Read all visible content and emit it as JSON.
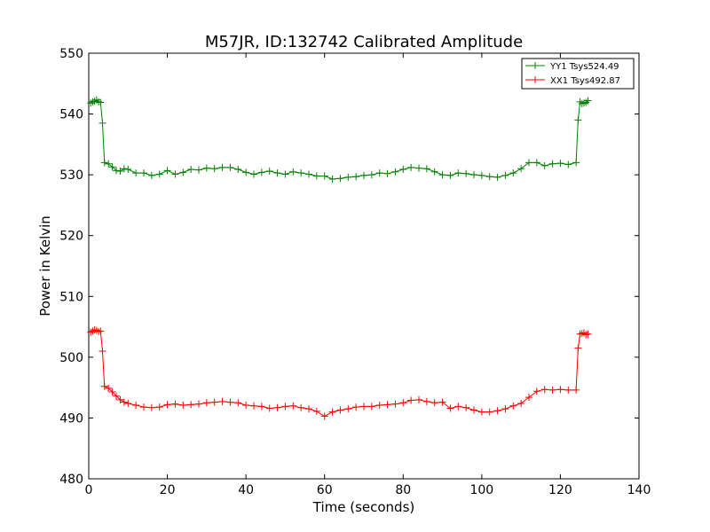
{
  "chart_data": {
    "type": "line",
    "title": "M57JR, ID:132742 Calibrated Amplitude",
    "xlabel": "Time (seconds)",
    "ylabel": "Power in Kelvin",
    "xlim": [
      0,
      140
    ],
    "ylim": [
      480,
      550
    ],
    "xticks": [
      0,
      20,
      40,
      60,
      80,
      100,
      120,
      140
    ],
    "yticks": [
      480,
      490,
      500,
      510,
      520,
      530,
      540,
      550
    ],
    "grid": false,
    "legend_position": "top-right",
    "marker": "plus",
    "series": [
      {
        "name": "YY1 Tsys524.49",
        "color": "#008000",
        "x": [
          0.5,
          1,
          1.5,
          2,
          2.5,
          3,
          3.5,
          4,
          5,
          6,
          7,
          8,
          9,
          10,
          12,
          14,
          16,
          18,
          20,
          22,
          24,
          26,
          28,
          30,
          32,
          34,
          36,
          38,
          40,
          42,
          44,
          46,
          48,
          50,
          52,
          54,
          56,
          58,
          60,
          62,
          64,
          66,
          68,
          70,
          72,
          74,
          76,
          78,
          80,
          82,
          84,
          86,
          88,
          90,
          92,
          94,
          96,
          98,
          100,
          102,
          104,
          106,
          108,
          110,
          112,
          114,
          116,
          118,
          120,
          122,
          124,
          124.5,
          125,
          125.5,
          126,
          126.5,
          127
        ],
        "y": [
          541.8,
          542,
          542.1,
          542.3,
          542,
          541.9,
          538.5,
          532,
          531.8,
          531.3,
          530.7,
          530.6,
          531,
          530.9,
          530.3,
          530.3,
          529.9,
          530.1,
          530.7,
          530.1,
          530.4,
          530.9,
          530.8,
          531.1,
          531,
          531.2,
          531.2,
          530.9,
          530.4,
          530.1,
          530.4,
          530.6,
          530.3,
          530.1,
          530.5,
          530.3,
          530.1,
          529.8,
          529.8,
          529.3,
          529.4,
          529.6,
          529.7,
          529.9,
          530,
          530.3,
          530.2,
          530.5,
          530.9,
          531.2,
          531.1,
          531,
          530.5,
          530,
          529.9,
          530.3,
          530.2,
          530,
          529.9,
          529.7,
          529.6,
          529.9,
          530.3,
          531,
          532,
          532,
          531.5,
          531.8,
          531.9,
          531.7,
          532,
          539,
          542,
          541.7,
          541.8,
          541.9,
          542.2
        ]
      },
      {
        "name": "XX1 Tsys492.87",
        "color": "#ff0000",
        "x": [
          0.5,
          1,
          1.5,
          2,
          2.5,
          3,
          3.5,
          4,
          5,
          6,
          7,
          8,
          9,
          10,
          12,
          14,
          16,
          18,
          20,
          22,
          24,
          26,
          28,
          30,
          32,
          34,
          36,
          38,
          40,
          42,
          44,
          46,
          48,
          50,
          52,
          54,
          56,
          58,
          60,
          62,
          64,
          66,
          68,
          70,
          72,
          74,
          76,
          78,
          80,
          82,
          84,
          86,
          88,
          90,
          92,
          94,
          96,
          98,
          100,
          102,
          104,
          106,
          108,
          110,
          112,
          114,
          116,
          118,
          120,
          122,
          124,
          124.5,
          125,
          125.5,
          126,
          126.5,
          127
        ],
        "y": [
          504.1,
          504.3,
          504.5,
          504.4,
          504.2,
          504.3,
          501,
          495.2,
          494.9,
          494.3,
          493.6,
          493,
          492.6,
          492.4,
          492.1,
          491.8,
          491.7,
          491.8,
          492.2,
          492.3,
          492.1,
          492.2,
          492.3,
          492.5,
          492.6,
          492.7,
          492.6,
          492.5,
          492.1,
          492,
          491.9,
          491.6,
          491.7,
          491.9,
          492,
          491.7,
          491.5,
          491.1,
          490.3,
          491,
          491.3,
          491.5,
          491.8,
          491.9,
          491.9,
          492.1,
          492.2,
          492.3,
          492.5,
          492.9,
          493,
          492.7,
          492.5,
          492.6,
          491.6,
          491.9,
          491.7,
          491.3,
          491,
          491,
          491.2,
          491.5,
          492,
          492.4,
          493.4,
          494.4,
          494.7,
          494.6,
          494.7,
          494.6,
          494.6,
          501.5,
          503.8,
          503.9,
          504,
          503.7,
          503.8
        ]
      }
    ]
  }
}
